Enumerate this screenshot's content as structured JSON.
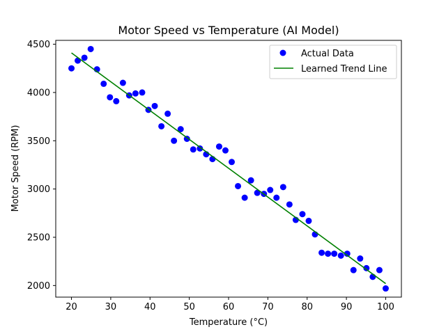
{
  "chart_data": {
    "type": "scatter",
    "title": "Motor Speed vs Temperature (AI Model)",
    "xlabel": "Temperature (°C)",
    "ylabel": "Motor Speed (RPM)",
    "xlim": [
      16,
      104
    ],
    "ylim": [
      1880,
      4540
    ],
    "xticks": [
      20,
      30,
      40,
      50,
      60,
      70,
      80,
      90,
      100
    ],
    "yticks": [
      2000,
      2500,
      3000,
      3500,
      4000,
      4500
    ],
    "grid": false,
    "legend_position": "top-right",
    "series": [
      {
        "name": "Actual Data",
        "type": "scatter",
        "color": "#0000ff",
        "x": [
          20,
          21.6,
          23.3,
          24.9,
          26.5,
          28.2,
          29.8,
          31.4,
          33.1,
          34.7,
          36.3,
          38.0,
          39.6,
          41.2,
          42.9,
          44.5,
          46.1,
          47.8,
          49.4,
          51.0,
          52.7,
          54.3,
          55.9,
          57.6,
          59.2,
          60.8,
          62.4,
          64.1,
          65.7,
          67.3,
          69.0,
          70.6,
          72.2,
          73.9,
          75.5,
          77.1,
          78.8,
          80.4,
          82.0,
          83.7,
          85.3,
          86.9,
          88.6,
          90.2,
          91.8,
          93.5,
          95.1,
          96.7,
          98.4,
          100
        ],
        "y": [
          4250,
          4330,
          4360,
          4450,
          4240,
          4090,
          3950,
          3910,
          4100,
          3970,
          3990,
          4000,
          3820,
          3860,
          3650,
          3780,
          3500,
          3620,
          3520,
          3410,
          3420,
          3360,
          3310,
          3440,
          3400,
          3280,
          3030,
          2910,
          3090,
          2960,
          2950,
          2990,
          2910,
          3020,
          2840,
          2680,
          2740,
          2670,
          2530,
          2340,
          2330,
          2330,
          2310,
          2330,
          2160,
          2280,
          2180,
          2090,
          2160,
          1970
        ]
      },
      {
        "name": "Learned Trend Line",
        "type": "line",
        "color": "#008000",
        "x": [
          20,
          100
        ],
        "y": [
          4410,
          2020
        ]
      }
    ]
  }
}
